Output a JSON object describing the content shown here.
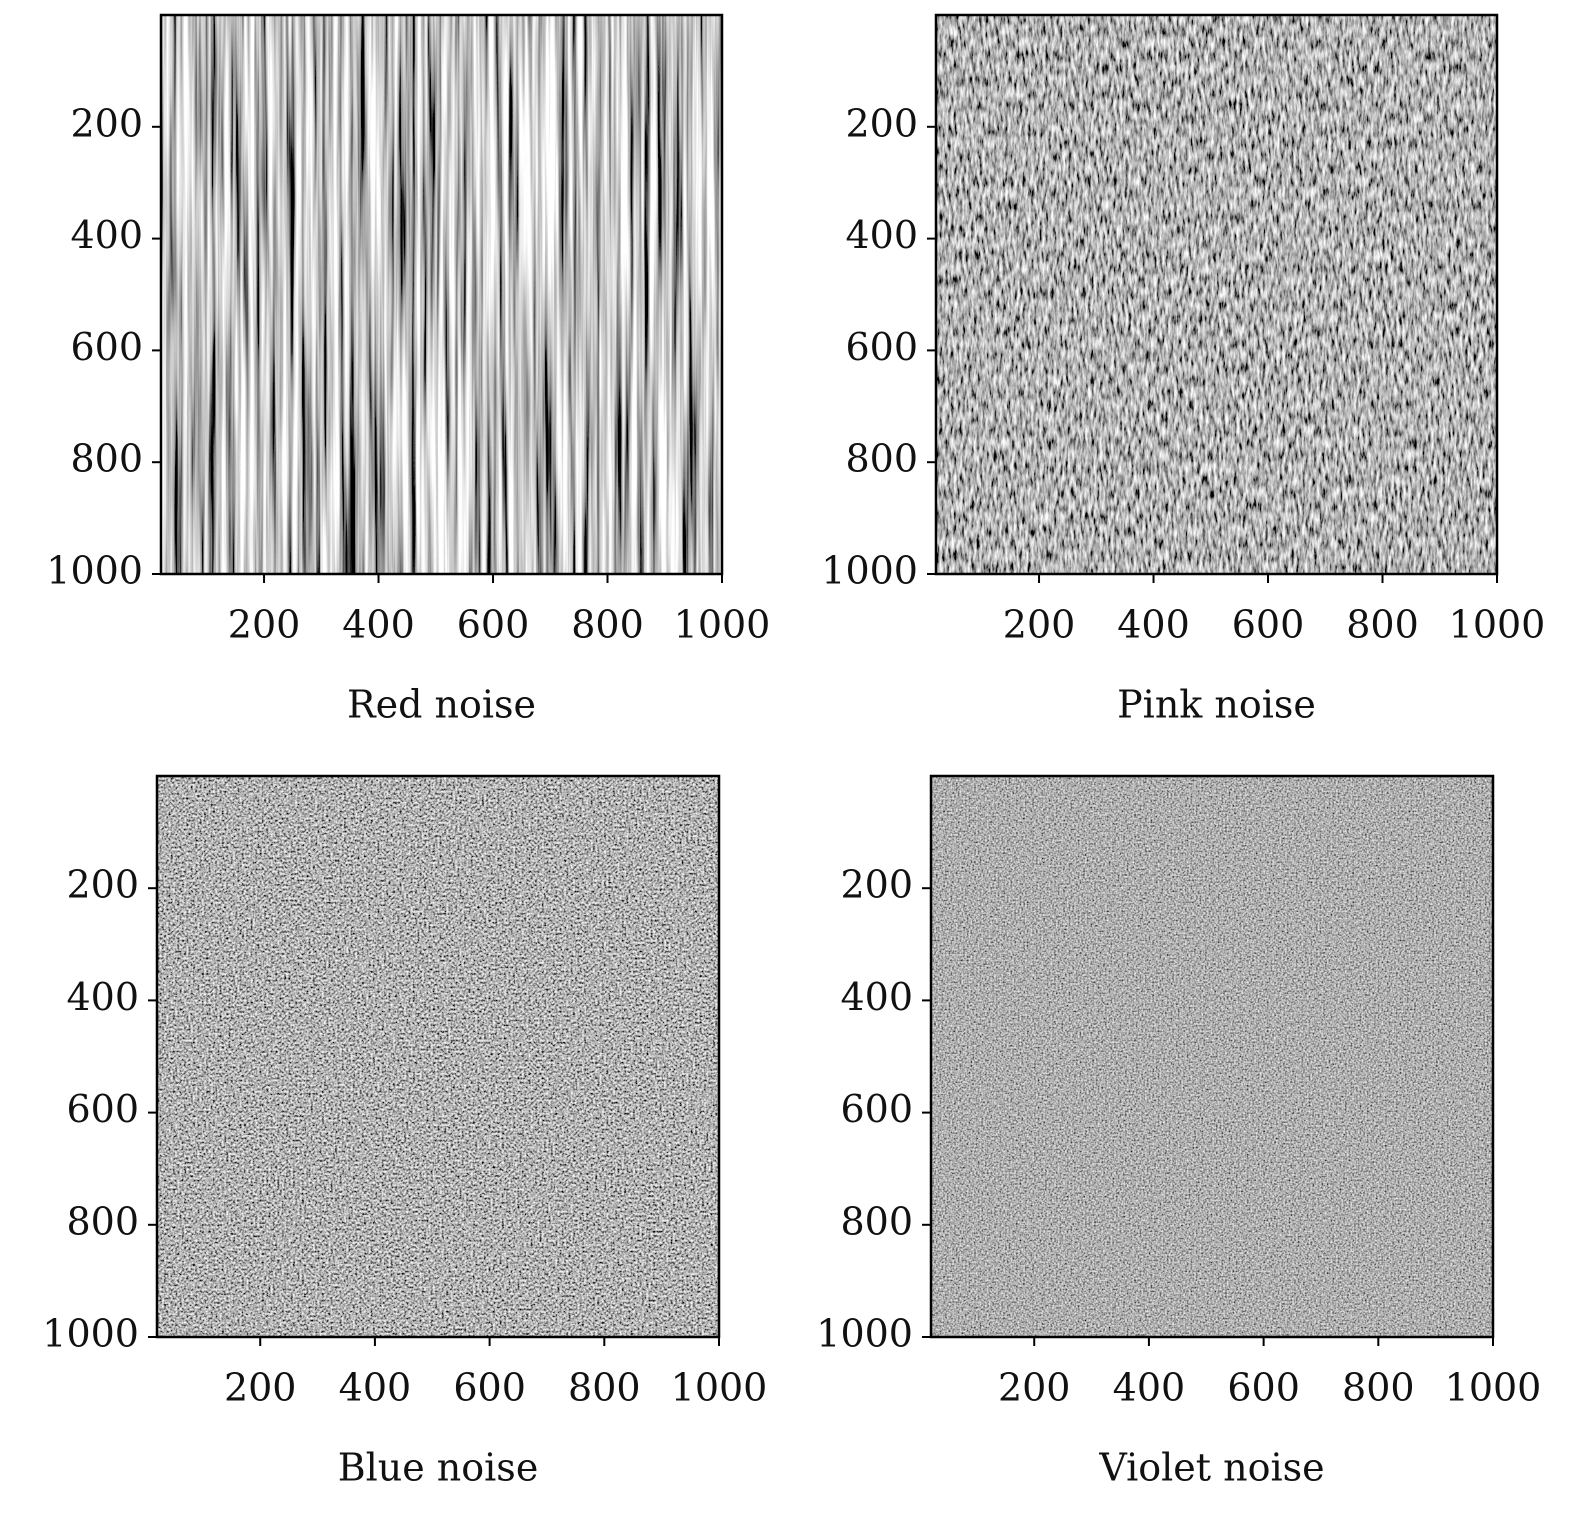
{
  "chart_data": [
    {
      "type": "image",
      "xlabel": "Red noise",
      "xlim": [
        20,
        1000
      ],
      "ylim": [
        1000,
        0
      ],
      "xticks": [
        200,
        400,
        600,
        800,
        1000
      ],
      "yticks": [
        200,
        400,
        600,
        800,
        1000
      ]
    },
    {
      "type": "image",
      "xlabel": "Pink noise",
      "xlim": [
        20,
        1000
      ],
      "ylim": [
        1000,
        0
      ],
      "xticks": [
        200,
        400,
        600,
        800,
        1000
      ],
      "yticks": [
        200,
        400,
        600,
        800,
        1000
      ]
    },
    {
      "type": "image",
      "xlabel": "Blue noise",
      "xlim": [
        20,
        1000
      ],
      "ylim": [
        1000,
        0
      ],
      "xticks": [
        200,
        400,
        600,
        800,
        1000
      ],
      "yticks": [
        200,
        400,
        600,
        800,
        1000
      ]
    },
    {
      "type": "image",
      "xlabel": "Violet noise",
      "xlim": [
        20,
        1000
      ],
      "ylim": [
        1000,
        0
      ],
      "xticks": [
        200,
        400,
        600,
        800,
        1000
      ],
      "yticks": [
        200,
        400,
        600,
        800,
        1000
      ]
    }
  ]
}
